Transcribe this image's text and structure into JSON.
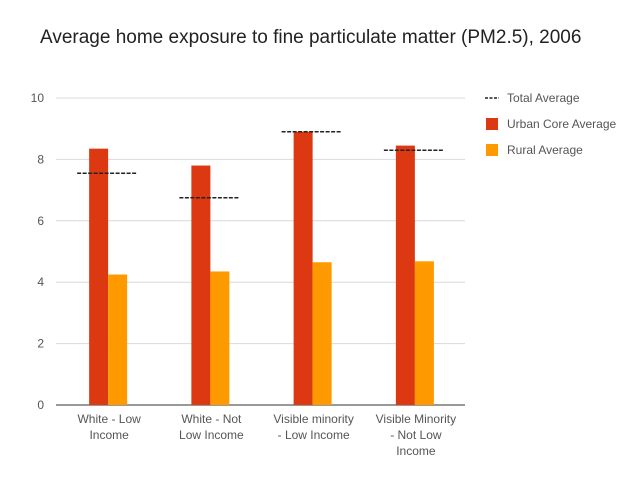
{
  "chart_data": {
    "type": "bar",
    "title": "Average home exposure to fine particulate matter (PM2.5), 2006",
    "xlabel": "",
    "ylabel": "",
    "ylim": [
      0,
      10
    ],
    "yticks": [
      "0",
      "2",
      "4",
      "6",
      "8",
      "10"
    ],
    "grid": true,
    "legend_position": "right",
    "categories": [
      [
        "White - Low",
        "Income"
      ],
      [
        "White - Not",
        "Low Income"
      ],
      [
        "Visible minority",
        "- Low Income"
      ],
      [
        "Visible Minority",
        "- Not Low",
        "Income"
      ]
    ],
    "series": [
      {
        "name": "Urban Core Average",
        "color": "#dc3912",
        "values": [
          8.35,
          7.8,
          8.9,
          8.45
        ]
      },
      {
        "name": "Rural Average",
        "color": "#ff9900",
        "values": [
          4.25,
          4.35,
          4.65,
          4.68
        ]
      }
    ],
    "markers": {
      "name": "Total Average",
      "color": "#222222",
      "style": "dashed",
      "values": [
        7.55,
        6.75,
        8.9,
        8.3
      ]
    }
  }
}
